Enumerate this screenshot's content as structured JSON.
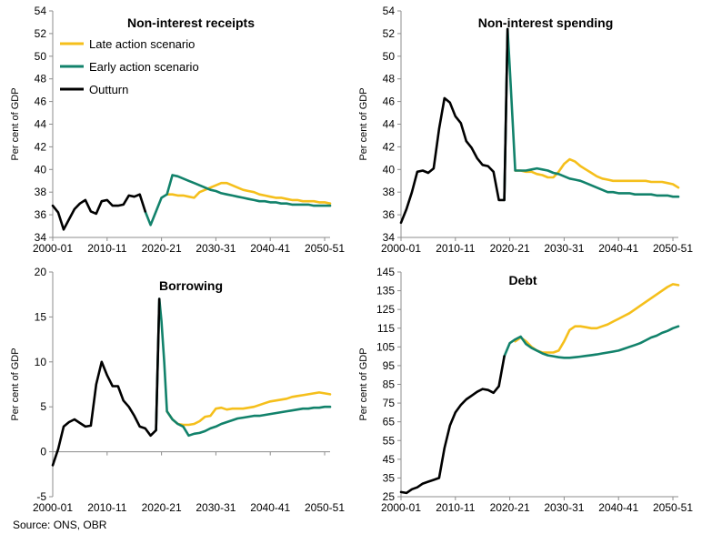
{
  "source": "Source: ONS, OBR",
  "colors": {
    "late": "#f5bf1b",
    "early": "#12826b",
    "outturn": "#000000",
    "axis": "#8c8c8c"
  },
  "chart_data": [
    {
      "type": "line",
      "title": "Non-interest receipts",
      "ylabel": "Per cent of GDP",
      "xlim": [
        2000,
        2051
      ],
      "ylim": [
        34,
        54
      ],
      "yticks": [
        34,
        36,
        38,
        40,
        42,
        44,
        46,
        48,
        50,
        52,
        54
      ],
      "xticks": [
        2000,
        2010,
        2020,
        2030,
        2040,
        2050
      ],
      "xticklabels": [
        "2000-01",
        "2010-11",
        "2020-21",
        "2030-31",
        "2040-41",
        "2050-51"
      ],
      "legend": [
        "Late action scenario",
        "Early action scenario",
        "Outturn"
      ],
      "series": [
        {
          "name": "Late action scenario",
          "key": "late",
          "x": [
            2021,
            2022,
            2023,
            2024,
            2025,
            2026,
            2027,
            2028,
            2029,
            2030,
            2031,
            2032,
            2033,
            2034,
            2035,
            2036,
            2037,
            2038,
            2039,
            2040,
            2041,
            2042,
            2043,
            2044,
            2045,
            2046,
            2047,
            2048,
            2049,
            2050,
            2051
          ],
          "y": [
            37.8,
            37.8,
            37.7,
            37.7,
            37.6,
            37.5,
            38.0,
            38.2,
            38.4,
            38.6,
            38.8,
            38.8,
            38.6,
            38.4,
            38.2,
            38.1,
            38.0,
            37.8,
            37.7,
            37.6,
            37.5,
            37.5,
            37.4,
            37.3,
            37.3,
            37.2,
            37.2,
            37.2,
            37.1,
            37.1,
            37.0
          ]
        },
        {
          "name": "Early action scenario",
          "key": "early",
          "x": [
            2017,
            2018,
            2019,
            2020,
            2021,
            2022,
            2023,
            2024,
            2025,
            2026,
            2027,
            2028,
            2029,
            2030,
            2031,
            2032,
            2033,
            2034,
            2035,
            2036,
            2037,
            2038,
            2039,
            2040,
            2041,
            2042,
            2043,
            2044,
            2045,
            2046,
            2047,
            2048,
            2049,
            2050,
            2051
          ],
          "y": [
            36.3,
            35.1,
            36.3,
            37.5,
            37.8,
            39.5,
            39.4,
            39.2,
            39.0,
            38.8,
            38.6,
            38.4,
            38.2,
            38.1,
            37.9,
            37.8,
            37.7,
            37.6,
            37.5,
            37.4,
            37.3,
            37.2,
            37.2,
            37.1,
            37.1,
            37.0,
            37.0,
            36.9,
            36.9,
            36.9,
            36.9,
            36.8,
            36.8,
            36.8,
            36.8
          ]
        },
        {
          "name": "Outturn",
          "key": "outturn",
          "x": [
            2000,
            2001,
            2002,
            2003,
            2004,
            2005,
            2006,
            2007,
            2008,
            2009,
            2010,
            2011,
            2012,
            2013,
            2014,
            2015,
            2016,
            2017
          ],
          "y": [
            36.8,
            36.2,
            34.7,
            35.6,
            36.5,
            37.0,
            37.3,
            36.3,
            36.1,
            37.2,
            37.3,
            36.8,
            36.8,
            36.9,
            37.7,
            37.6,
            37.8,
            36.3
          ]
        }
      ]
    },
    {
      "type": "line",
      "title": "Non-interest spending",
      "ylabel": "Per cent of GDP",
      "xlim": [
        2000,
        2051
      ],
      "ylim": [
        34,
        54
      ],
      "yticks": [
        34,
        36,
        38,
        40,
        42,
        44,
        46,
        48,
        50,
        52,
        54
      ],
      "xticks": [
        2000,
        2010,
        2020,
        2030,
        2040,
        2050
      ],
      "xticklabels": [
        "2000-01",
        "2010-11",
        "2020-21",
        "2030-31",
        "2040-41",
        "2050-51"
      ],
      "series": [
        {
          "name": "Late action scenario",
          "key": "late",
          "x": [
            2021,
            2022,
            2023,
            2024,
            2025,
            2026,
            2027,
            2028,
            2029,
            2030,
            2031,
            2032,
            2033,
            2034,
            2035,
            2036,
            2037,
            2038,
            2039,
            2040,
            2041,
            2042,
            2043,
            2044,
            2045,
            2046,
            2047,
            2048,
            2049,
            2050,
            2051
          ],
          "y": [
            39.9,
            39.9,
            39.8,
            39.8,
            39.6,
            39.5,
            39.3,
            39.3,
            39.8,
            40.5,
            40.9,
            40.7,
            40.3,
            40.0,
            39.7,
            39.4,
            39.2,
            39.1,
            39.0,
            39.0,
            39.0,
            39.0,
            39.0,
            39.0,
            39.0,
            38.9,
            38.9,
            38.9,
            38.8,
            38.7,
            38.4
          ]
        },
        {
          "name": "Early action scenario",
          "key": "early",
          "x": [
            2019,
            2019.6,
            2020,
            2020.5,
            2021,
            2022,
            2023,
            2024,
            2025,
            2026,
            2027,
            2028,
            2029,
            2030,
            2031,
            2032,
            2033,
            2034,
            2035,
            2036,
            2037,
            2038,
            2039,
            2040,
            2041,
            2042,
            2043,
            2044,
            2045,
            2046,
            2047,
            2048,
            2049,
            2050,
            2051
          ],
          "y": [
            37.3,
            52.4,
            49.0,
            44.5,
            39.9,
            39.9,
            39.9,
            40.0,
            40.1,
            40.0,
            39.9,
            39.7,
            39.6,
            39.4,
            39.2,
            39.1,
            39.0,
            38.8,
            38.6,
            38.4,
            38.2,
            38.0,
            38.0,
            37.9,
            37.9,
            37.9,
            37.8,
            37.8,
            37.8,
            37.8,
            37.7,
            37.7,
            37.7,
            37.6,
            37.6
          ]
        },
        {
          "name": "Outturn",
          "key": "outturn",
          "x": [
            2000,
            2001,
            2002,
            2003,
            2004,
            2005,
            2006,
            2007,
            2008,
            2009,
            2010,
            2011,
            2012,
            2013,
            2014,
            2015,
            2016,
            2017,
            2018,
            2019,
            2019.6
          ],
          "y": [
            35.3,
            36.5,
            38.0,
            39.8,
            39.9,
            39.7,
            40.1,
            43.6,
            46.3,
            45.9,
            44.7,
            44.1,
            42.5,
            41.9,
            41.0,
            40.4,
            40.3,
            39.8,
            37.3,
            37.3,
            52.4
          ]
        }
      ]
    },
    {
      "type": "line",
      "title": "Borrowing",
      "ylabel": "Per cent of GDP",
      "xlim": [
        2000,
        2051
      ],
      "ylim": [
        -5,
        20
      ],
      "yticks": [
        -5,
        0,
        5,
        10,
        15,
        20
      ],
      "xticks": [
        2000,
        2010,
        2020,
        2030,
        2040,
        2050
      ],
      "xticklabels": [
        "2000-01",
        "2010-11",
        "2020-21",
        "2030-31",
        "2040-41",
        "2050-51"
      ],
      "series": [
        {
          "name": "Late action scenario",
          "key": "late",
          "x": [
            2021,
            2022,
            2023,
            2024,
            2025,
            2026,
            2027,
            2028,
            2029,
            2030,
            2031,
            2032,
            2033,
            2034,
            2035,
            2036,
            2037,
            2038,
            2039,
            2040,
            2041,
            2042,
            2043,
            2044,
            2045,
            2046,
            2047,
            2048,
            2049,
            2050,
            2051
          ],
          "y": [
            4.5,
            3.6,
            3.1,
            3.0,
            3.0,
            3.1,
            3.4,
            3.9,
            4.0,
            4.8,
            4.9,
            4.7,
            4.8,
            4.8,
            4.8,
            4.9,
            5.0,
            5.2,
            5.4,
            5.6,
            5.7,
            5.8,
            5.9,
            6.1,
            6.2,
            6.3,
            6.4,
            6.5,
            6.6,
            6.5,
            6.4
          ]
        },
        {
          "name": "Early action scenario",
          "key": "early",
          "x": [
            2019,
            2019.6,
            2020,
            2020.5,
            2021,
            2022,
            2023,
            2024,
            2025,
            2026,
            2027,
            2028,
            2029,
            2030,
            2031,
            2032,
            2033,
            2034,
            2035,
            2036,
            2037,
            2038,
            2039,
            2040,
            2041,
            2042,
            2043,
            2044,
            2045,
            2046,
            2047,
            2048,
            2049,
            2050,
            2051
          ],
          "y": [
            2.4,
            17.0,
            14.5,
            10.0,
            4.5,
            3.6,
            3.1,
            2.8,
            1.8,
            2.0,
            2.1,
            2.3,
            2.6,
            2.8,
            3.1,
            3.3,
            3.5,
            3.7,
            3.8,
            3.9,
            4.0,
            4.0,
            4.1,
            4.2,
            4.3,
            4.4,
            4.5,
            4.6,
            4.7,
            4.8,
            4.8,
            4.9,
            4.9,
            5.0,
            5.0
          ]
        },
        {
          "name": "Outturn",
          "key": "outturn",
          "x": [
            2000,
            2001,
            2002,
            2003,
            2004,
            2005,
            2006,
            2007,
            2008,
            2009,
            2010,
            2011,
            2012,
            2013,
            2014,
            2015,
            2016,
            2017,
            2018,
            2019,
            2019.6
          ],
          "y": [
            -1.5,
            0.3,
            2.8,
            3.3,
            3.6,
            3.2,
            2.8,
            2.9,
            7.5,
            10.0,
            8.5,
            7.3,
            7.3,
            5.7,
            5.0,
            4.0,
            2.8,
            2.6,
            1.8,
            2.4,
            17.0
          ]
        }
      ]
    },
    {
      "type": "line",
      "title": "Debt",
      "ylabel": "Per cent of GDP",
      "xlim": [
        2000,
        2051
      ],
      "ylim": [
        25,
        145
      ],
      "yticks": [
        25,
        35,
        45,
        55,
        65,
        75,
        85,
        95,
        105,
        115,
        125,
        135,
        145
      ],
      "xticks": [
        2000,
        2010,
        2020,
        2030,
        2040,
        2050
      ],
      "xticklabels": [
        "2000-01",
        "2010-11",
        "2020-21",
        "2030-31",
        "2040-41",
        "2050-51"
      ],
      "series": [
        {
          "name": "Late action scenario",
          "key": "late",
          "x": [
            2021,
            2022,
            2023,
            2024,
            2025,
            2026,
            2027,
            2028,
            2029,
            2030,
            2031,
            2032,
            2033,
            2034,
            2035,
            2036,
            2037,
            2038,
            2039,
            2040,
            2041,
            2042,
            2043,
            2044,
            2045,
            2046,
            2047,
            2048,
            2049,
            2050,
            2051
          ],
          "y": [
            108,
            110,
            108,
            105,
            103,
            102,
            102,
            102,
            103,
            108,
            114,
            116,
            116,
            115.5,
            115,
            115,
            116,
            117,
            118.5,
            120,
            121.5,
            123,
            125,
            127,
            129,
            131,
            133,
            135,
            137,
            138.5,
            138
          ]
        },
        {
          "name": "Early action scenario",
          "key": "early",
          "x": [
            2019,
            2020,
            2021,
            2022,
            2023,
            2024,
            2025,
            2026,
            2027,
            2028,
            2029,
            2030,
            2031,
            2032,
            2033,
            2034,
            2035,
            2036,
            2037,
            2038,
            2039,
            2040,
            2041,
            2042,
            2043,
            2044,
            2045,
            2046,
            2047,
            2048,
            2049,
            2050,
            2051
          ],
          "y": [
            100,
            107,
            109,
            110.5,
            106.5,
            104.5,
            103,
            101.5,
            100.5,
            100,
            99.5,
            99.2,
            99.2,
            99.5,
            99.8,
            100.2,
            100.6,
            101,
            101.5,
            102,
            102.5,
            103,
            104,
            105,
            106,
            107,
            108.5,
            110,
            111,
            112.5,
            113.5,
            115,
            116
          ]
        },
        {
          "name": "Outturn",
          "key": "outturn",
          "x": [
            2000,
            2001,
            2002,
            2003,
            2004,
            2005,
            2006,
            2007,
            2008,
            2009,
            2010,
            2011,
            2012,
            2013,
            2014,
            2015,
            2016,
            2017,
            2018,
            2019
          ],
          "y": [
            27.5,
            27,
            29,
            30,
            32,
            33,
            34,
            35,
            51,
            63,
            70,
            74,
            77,
            79,
            81,
            82.5,
            82,
            80.5,
            84,
            100
          ]
        }
      ]
    }
  ]
}
